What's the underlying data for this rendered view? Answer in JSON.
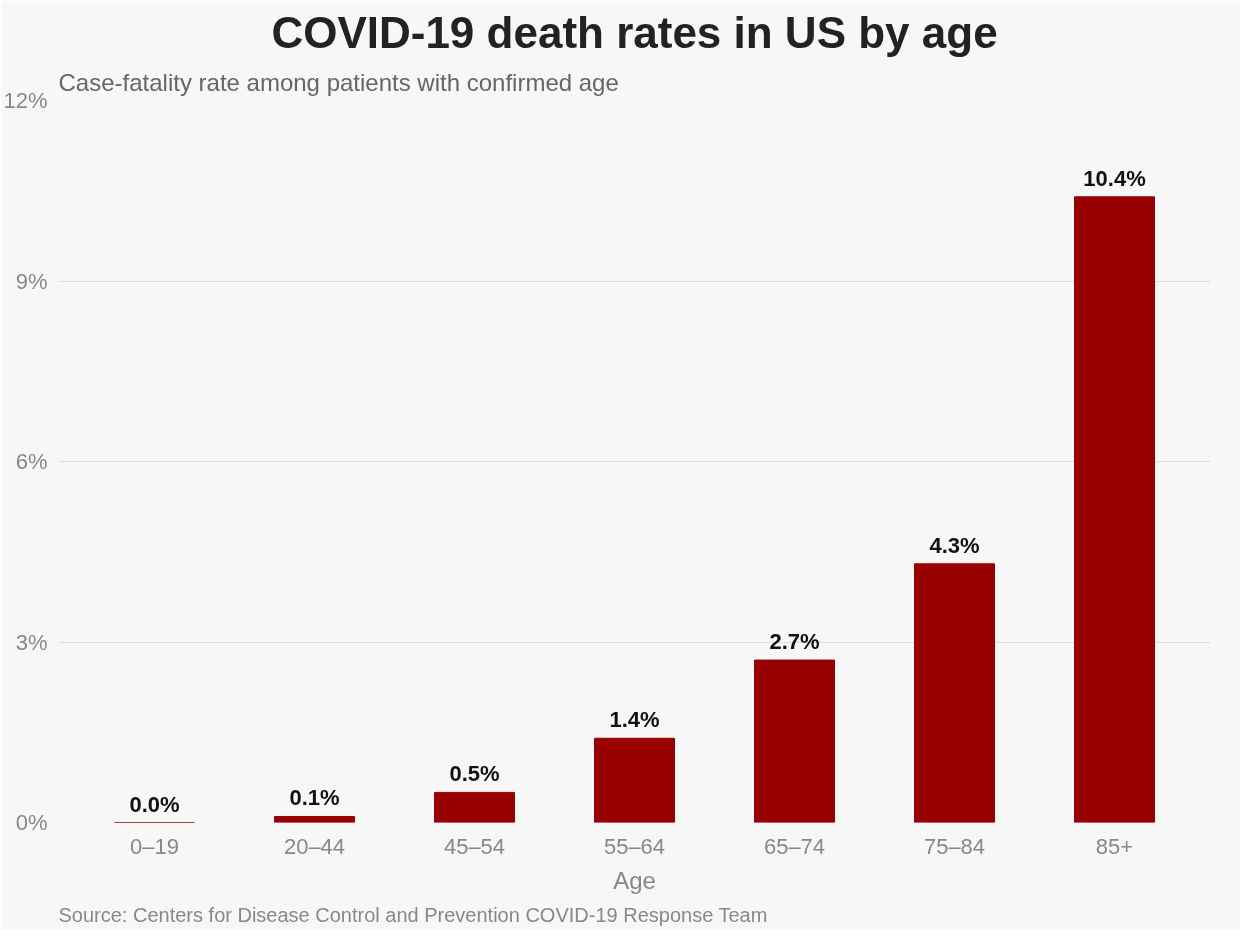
{
  "chart_data": {
    "type": "bar",
    "title": "COVID-19 death rates in US by age",
    "subtitle": "Case-fatality rate among patients with confirmed age",
    "xlabel": "Age",
    "categories": [
      "0–19",
      "20–44",
      "45–54",
      "55–64",
      "65–74",
      "75–84",
      "85+"
    ],
    "values": [
      0.0,
      0.1,
      0.5,
      1.4,
      2.7,
      4.3,
      10.4
    ],
    "value_labels": [
      "0.0%",
      "0.1%",
      "0.5%",
      "1.4%",
      "2.7%",
      "4.3%",
      "10.4%"
    ],
    "color": "#990000",
    "ylim": [
      0,
      12
    ],
    "yticks": [
      {
        "value": 0,
        "label": "0%"
      },
      {
        "value": 3,
        "label": "3%"
      },
      {
        "value": 6,
        "label": "6%"
      },
      {
        "value": 9,
        "label": "9%"
      },
      {
        "value": 12,
        "label": "12%"
      }
    ],
    "grid": "y",
    "annotations": [
      "Source: Centers for Disease Control and Prevention COVID-19 Response Team"
    ]
  }
}
